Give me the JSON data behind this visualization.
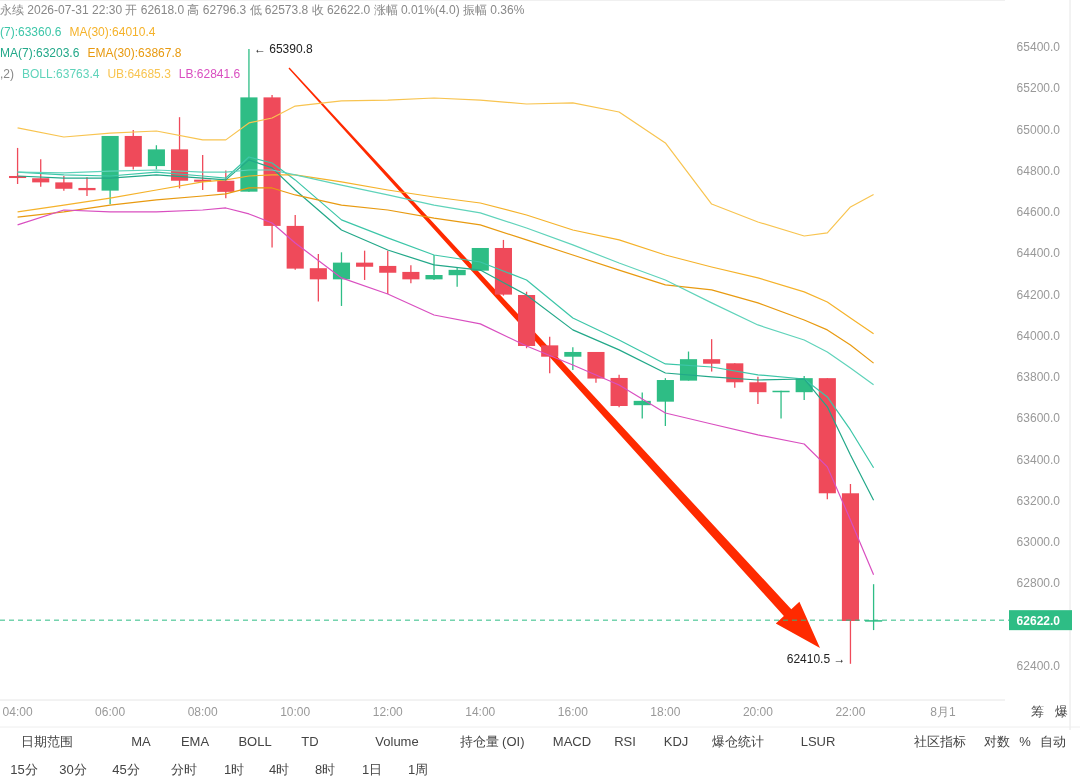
{
  "chart_data": {
    "type": "candlestick",
    "x": [
      4,
      4.5,
      5,
      5.5,
      6,
      6.5,
      7,
      7.5,
      8,
      8.5,
      9,
      9.5,
      10,
      10.5,
      11,
      11.5,
      12,
      12.5,
      13,
      13.5,
      14,
      14.5,
      15,
      15.5,
      16,
      16.5,
      17,
      17.5,
      18,
      18.5,
      19,
      19.5,
      20,
      20.5,
      21,
      21.5,
      22,
      22.5
    ],
    "ohlc": [
      [
        64775,
        64911,
        64736,
        64765
      ],
      [
        64764,
        64856,
        64723,
        64744
      ],
      [
        64744,
        64775,
        64704,
        64713
      ],
      [
        64717,
        64769,
        64678,
        64706
      ],
      [
        64704,
        64969,
        64638,
        64969
      ],
      [
        64969,
        64998,
        64807,
        64820
      ],
      [
        64823,
        64924,
        64807,
        64904
      ],
      [
        64904,
        65060,
        64715,
        64752
      ],
      [
        64757,
        64877,
        64707,
        64747
      ],
      [
        64752,
        64801,
        64667,
        64698
      ],
      [
        64699,
        65390.8,
        64699,
        65156
      ],
      [
        65156,
        65168,
        64428,
        64533
      ],
      [
        64533,
        64586,
        64320,
        64326
      ],
      [
        64328,
        64397,
        64166,
        64274
      ],
      [
        64274,
        64405,
        64145,
        64355
      ],
      [
        64355,
        64413,
        64271,
        64335
      ],
      [
        64339,
        64413,
        64203,
        64306
      ],
      [
        64310,
        64342,
        64255,
        64274
      ],
      [
        64274,
        64392,
        64271,
        64295
      ],
      [
        64294,
        64333,
        64238,
        64320
      ],
      [
        64316,
        64426,
        64316,
        64426
      ],
      [
        64426,
        64465,
        64195,
        64200
      ],
      [
        64198,
        64214,
        63940,
        63951
      ],
      [
        63954,
        63996,
        63819,
        63899
      ],
      [
        63899,
        63945,
        63835,
        63922
      ],
      [
        63922,
        63922,
        63773,
        63793
      ],
      [
        63796,
        63811,
        63654,
        63660
      ],
      [
        63664,
        63725,
        63599,
        63685
      ],
      [
        63681,
        63795,
        63563,
        63786
      ],
      [
        63783,
        63924,
        63783,
        63887
      ],
      [
        63887,
        63984,
        63827,
        63865
      ],
      [
        63867,
        63867,
        63749,
        63775
      ],
      [
        63775,
        63802,
        63670,
        63727
      ],
      [
        63727,
        63734,
        63599,
        63734
      ],
      [
        63727,
        63806,
        63689,
        63795
      ],
      [
        63795,
        63795,
        63208,
        63237
      ],
      [
        63237,
        63282,
        62410.5,
        62618
      ],
      [
        62618.0,
        62796.3,
        62573.8,
        62622.0
      ]
    ],
    "colors": [
      "#ef4a5a",
      "#ef4a5a",
      "#ef4a5a",
      "#ef4a5a",
      "#2ebd85",
      "#ef4a5a",
      "#2ebd85",
      "#ef4a5a",
      "#ef4a5a",
      "#ef4a5a",
      "#2ebd85",
      "#ef4a5a",
      "#ef4a5a",
      "#ef4a5a",
      "#2ebd85",
      "#ef4a5a",
      "#ef4a5a",
      "#ef4a5a",
      "#2ebd85",
      "#2ebd85",
      "#2ebd85",
      "#ef4a5a",
      "#ef4a5a",
      "#ef4a5a",
      "#2ebd85",
      "#ef4a5a",
      "#ef4a5a",
      "#2ebd85",
      "#2ebd85",
      "#2ebd85",
      "#ef4a5a",
      "#ef4a5a",
      "#ef4a5a",
      "#2ebd85",
      "#2ebd85",
      "#ef4a5a",
      "#ef4a5a",
      "#2ebd85"
    ],
    "series": [
      {
        "type": "line",
        "name": "(7):63360.6",
        "color": "#3cc6a8",
        "x": [
          4,
          5,
          6,
          7,
          8,
          8.5,
          9,
          9.5,
          10,
          11,
          12,
          13,
          14,
          15,
          16,
          17,
          18,
          19,
          20,
          21,
          21.5,
          22,
          22.5
        ],
        "values": [
          64794,
          64780,
          64775,
          64794,
          64775,
          64765,
          64867,
          64838,
          64756,
          64562,
          64475,
          64392,
          64358,
          64271,
          64087,
          63980,
          63864,
          63849,
          63811,
          63791,
          63704,
          63544,
          63360.6
        ]
      },
      {
        "type": "line",
        "name": "MA(30):64010.4",
        "color": "#f5b22a",
        "x": [
          4,
          5,
          6,
          7,
          8,
          8.5,
          9,
          9.5,
          10,
          11,
          12,
          13,
          14,
          15,
          16,
          17,
          18,
          19,
          20,
          21,
          21.5,
          22,
          22.5
        ],
        "values": [
          64601,
          64634,
          64668,
          64707,
          64746,
          64756,
          64775,
          64780,
          64780,
          64746,
          64707,
          64673,
          64644,
          64586,
          64513,
          64465,
          64392,
          64334,
          64281,
          64213,
          64164,
          64087,
          64010.4
        ]
      },
      {
        "type": "line",
        "name": "MA(7):63203.6",
        "color": "#22a889",
        "x": [
          4,
          5,
          6,
          7,
          8,
          8.5,
          9,
          9.5,
          10,
          11,
          12,
          13,
          14,
          15,
          16,
          17,
          18,
          19,
          20,
          21,
          21.5,
          22,
          22.5
        ],
        "values": [
          64775,
          64765,
          64765,
          64780,
          64765,
          64756,
          64853,
          64814,
          64707,
          64513,
          64416,
          64344,
          64319,
          64198,
          64029,
          63932,
          63820,
          63801,
          63786,
          63791,
          63656,
          63423,
          63203.6
        ]
      },
      {
        "type": "line",
        "name": "EMA(30):63867.8",
        "color": "#e89a10",
        "x": [
          4,
          5,
          6,
          7,
          8,
          8.5,
          9,
          9.5,
          10,
          11,
          12,
          13,
          14,
          15,
          16,
          17,
          18,
          19,
          20,
          21,
          21.5,
          22,
          22.5
        ],
        "values": [
          64576,
          64601,
          64634,
          64659,
          64678,
          64688,
          64717,
          64717,
          64683,
          64634,
          64610,
          64571,
          64538,
          64465,
          64392,
          64319,
          64247,
          64223,
          64160,
          64077,
          64029,
          63956,
          63867.8
        ]
      },
      {
        "type": "line",
        "name": "BOLL:63763.4",
        "color": "#5fd3ba",
        "x": [
          4,
          5,
          6,
          7,
          8,
          8.5,
          9,
          9.5,
          10,
          11,
          12,
          13,
          14,
          15,
          16,
          17,
          18,
          19,
          20,
          21,
          21.5,
          22,
          22.5
        ],
        "values": [
          64794,
          64790,
          64799,
          64804,
          64794,
          64794,
          64804,
          64804,
          64780,
          64731,
          64683,
          64634,
          64596,
          64523,
          64441,
          64353,
          64271,
          64160,
          64053,
          63980,
          63922,
          63844,
          63763.4
        ]
      },
      {
        "type": "line",
        "name": "UB:64685.3",
        "color": "#f8c450",
        "x": [
          4,
          5,
          6,
          7,
          8,
          8.5,
          9,
          9.5,
          10,
          11,
          12,
          13,
          14,
          15,
          16,
          17,
          18,
          19,
          20,
          21,
          21.5,
          22,
          22.5
        ],
        "values": [
          65008,
          64964,
          64983,
          64993,
          64950,
          64950,
          65032,
          65056,
          65114,
          65139,
          65143,
          65153,
          65143,
          65124,
          65129,
          65085,
          64935,
          64639,
          64552,
          64484,
          64499,
          64625,
          64685.3
        ]
      },
      {
        "type": "line",
        "name": "LB:62841.6",
        "color": "#d94fc0",
        "x": [
          4,
          5,
          6,
          7,
          8,
          8.5,
          9,
          9.5,
          10,
          11,
          12,
          13,
          14,
          15,
          16,
          17,
          18,
          19,
          20,
          21,
          21.5,
          22,
          22.5
        ],
        "values": [
          64538,
          64610,
          64601,
          64601,
          64610,
          64620,
          64591,
          64547,
          64450,
          64281,
          64203,
          64101,
          64058,
          63951,
          63859,
          63762,
          63626,
          63573,
          63520,
          63476,
          63365,
          63108,
          62841.6
        ]
      }
    ],
    "xlim": [
      3.62,
      25.34
    ],
    "xticks": [
      {
        "value": 4,
        "label": "04:00"
      },
      {
        "value": 6,
        "label": "06:00"
      },
      {
        "value": 8,
        "label": "08:00"
      },
      {
        "value": 10,
        "label": "10:00"
      },
      {
        "value": 12,
        "label": "12:00"
      },
      {
        "value": 14,
        "label": "14:00"
      },
      {
        "value": 16,
        "label": "16:00"
      },
      {
        "value": 18,
        "label": "18:00"
      },
      {
        "value": 20,
        "label": "20:00"
      },
      {
        "value": 22,
        "label": "22:00"
      },
      {
        "value": 24,
        "label": "8月1"
      }
    ],
    "ylim": [
      62235,
      65628
    ],
    "yticks": [
      {
        "value": 62400,
        "label": "62400.0"
      },
      {
        "value": 62800,
        "label": "62800.0"
      },
      {
        "value": 63000,
        "label": "63000.0"
      },
      {
        "value": 63200,
        "label": "63200.0"
      },
      {
        "value": 63400,
        "label": "63400.0"
      },
      {
        "value": 63600,
        "label": "63600.0"
      },
      {
        "value": 63800,
        "label": "63800.0"
      },
      {
        "value": 64000,
        "label": "64000.0"
      },
      {
        "value": 64200,
        "label": "64200.0"
      },
      {
        "value": 64400,
        "label": "64400.0"
      },
      {
        "value": 64600,
        "label": "64600.0"
      },
      {
        "value": 64800,
        "label": "64800.0"
      },
      {
        "value": 65000,
        "label": "65000.0"
      },
      {
        "value": 65200,
        "label": "65200.0"
      },
      {
        "value": 65400,
        "label": "65400.0"
      }
    ],
    "ref_lines": [
      {
        "axis": "y",
        "value": 62622.0,
        "label": "62622.0",
        "color": "#2ebd85",
        "line_style": "dashed"
      }
    ],
    "legend": "top left",
    "annotations": [
      "永续 2026-07-31 22:30 开 62618.0 高 62796.3 低 62573.8 收 62622.0 涨幅 0.01%(4.0) 振幅 0.36%",
      ",2)",
      {
        "text": "← 65390.8",
        "x": 9,
        "y": 65390.8
      },
      {
        "text": "62410.5 →",
        "x": 22,
        "y": 62410.5
      },
      "筹",
      "爆",
      "日期范围",
      "MA",
      "EMA",
      "BOLL",
      "TD",
      "Volume",
      "持仓量 (OI)",
      "MACD",
      "RSI",
      "KDJ",
      "爆仓统计",
      "LSUR",
      "社区指标",
      "对数",
      "%",
      "自动",
      "15分",
      "30分",
      "45分",
      "分时",
      "1时",
      "4时",
      "8时",
      "1日",
      "1周"
    ]
  }
}
